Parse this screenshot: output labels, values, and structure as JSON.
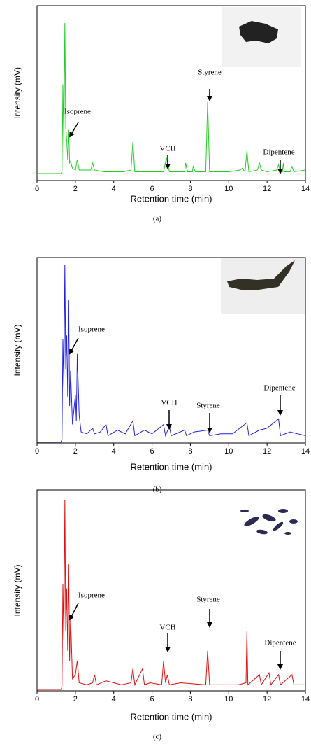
{
  "chart_data": [
    {
      "type": "line",
      "color": "#22cc22",
      "xlabel": "Retention time (min)",
      "ylabel": "Intensity (mV)",
      "caption": "(a)",
      "xlim": [
        0,
        14
      ],
      "xticks": [
        0,
        2,
        4,
        6,
        8,
        10,
        12,
        14
      ],
      "ylim": [
        0,
        100
      ],
      "annotations": [
        "Isoprene",
        "VCH",
        "Styrene",
        "Dipentene"
      ],
      "x": [
        0,
        1.25,
        1.3,
        1.35,
        1.4,
        1.45,
        1.5,
        1.55,
        1.6,
        1.65,
        1.7,
        1.75,
        1.85,
        2.0,
        2.1,
        2.2,
        2.5,
        2.8,
        2.9,
        3.0,
        3.5,
        4.5,
        4.9,
        5.0,
        5.1,
        6.0,
        6.6,
        6.75,
        6.9,
        7.7,
        7.75,
        7.85,
        8.1,
        8.15,
        8.25,
        8.8,
        8.9,
        9.0,
        10.0,
        10.6,
        10.7,
        10.85,
        10.95,
        11.05,
        11.5,
        11.6,
        11.7,
        12.0,
        12.5,
        12.6,
        12.7,
        12.8,
        12.85,
        12.9,
        13.2,
        13.3,
        13.4,
        14
      ],
      "values": [
        4,
        4,
        5,
        55,
        20,
        90,
        30,
        23,
        12,
        29,
        10,
        11,
        7,
        6,
        12,
        6,
        6,
        6,
        10,
        6,
        5,
        5,
        6,
        22,
        5,
        5,
        5,
        13,
        5,
        5,
        10,
        5,
        5,
        8,
        5,
        5,
        45,
        5,
        5,
        6,
        7,
        5,
        17,
        5,
        6,
        10,
        6,
        5,
        6,
        9,
        5,
        5,
        10,
        5,
        5,
        8,
        5,
        6
      ]
    },
    {
      "type": "line",
      "color": "#2222dd",
      "xlabel": "Retention time (min)",
      "ylabel": "Intensity (mV)",
      "caption": "(b)",
      "xlim": [
        0,
        14
      ],
      "xticks": [
        0,
        2,
        4,
        6,
        8,
        10,
        12,
        14
      ],
      "ylim": [
        0,
        100
      ],
      "annotations": [
        "Isoprene",
        "VCH",
        "Styrene",
        "Dipentene"
      ],
      "x": [
        0,
        1.25,
        1.3,
        1.35,
        1.4,
        1.45,
        1.5,
        1.55,
        1.6,
        1.65,
        1.7,
        1.75,
        1.85,
        2.0,
        2.05,
        2.1,
        2.2,
        2.3,
        2.6,
        2.9,
        3.0,
        3.3,
        3.6,
        3.7,
        4.2,
        4.6,
        5.0,
        5.1,
        5.6,
        6.0,
        6.6,
        6.7,
        6.9,
        7.0,
        7.7,
        7.8,
        8.2,
        8.9,
        9.0,
        9.6,
        10.2,
        10.95,
        11.05,
        11.6,
        12.0,
        12.6,
        12.7,
        13.2,
        13.6,
        14
      ],
      "values": [
        0.5,
        0.5,
        2,
        56,
        30,
        96,
        40,
        58,
        25,
        77,
        20,
        39,
        10,
        26,
        12,
        48,
        15,
        6,
        5,
        8,
        5,
        6,
        10,
        4,
        7,
        5,
        12,
        4,
        7,
        5,
        10,
        4,
        9,
        4,
        7,
        4,
        6,
        7,
        4,
        5,
        5,
        11,
        4,
        7,
        8,
        13,
        4,
        6,
        5,
        4
      ]
    },
    {
      "type": "line",
      "color": "#dd1111",
      "xlabel": "Retention time (min)",
      "ylabel": "Intensity (mV)",
      "caption": "(c)",
      "xlim": [
        0,
        14
      ],
      "xticks": [
        0,
        2,
        4,
        6,
        8,
        10,
        12,
        14
      ],
      "ylim": [
        0,
        100
      ],
      "annotations": [
        "Isoprene",
        "VCH",
        "Styrene",
        "Dipentene"
      ],
      "x": [
        0,
        1.25,
        1.3,
        1.35,
        1.4,
        1.45,
        1.5,
        1.55,
        1.6,
        1.65,
        1.7,
        1.75,
        1.85,
        2.0,
        2.1,
        2.2,
        2.6,
        2.9,
        3.0,
        3.1,
        3.6,
        4.4,
        4.9,
        5.0,
        5.1,
        5.5,
        5.6,
        5.9,
        6.5,
        6.6,
        6.7,
        6.8,
        6.9,
        7.5,
        8.8,
        8.9,
        9.0,
        9.5,
        10.5,
        10.9,
        10.95,
        11.0,
        11.6,
        11.7,
        12.1,
        12.2,
        12.6,
        12.7,
        13.3,
        13.4,
        14
      ],
      "values": [
        0.7,
        0.7,
        2,
        53,
        25,
        95,
        30,
        51,
        20,
        63,
        15,
        37,
        6,
        8,
        15,
        4,
        3,
        4,
        8,
        3,
        5,
        3,
        4,
        11,
        3,
        11,
        3,
        4,
        3,
        15,
        4,
        8,
        3,
        4,
        3,
        20,
        3,
        3,
        3,
        4,
        30,
        3,
        8,
        3,
        9,
        3,
        8,
        3,
        8,
        3,
        3
      ]
    }
  ]
}
